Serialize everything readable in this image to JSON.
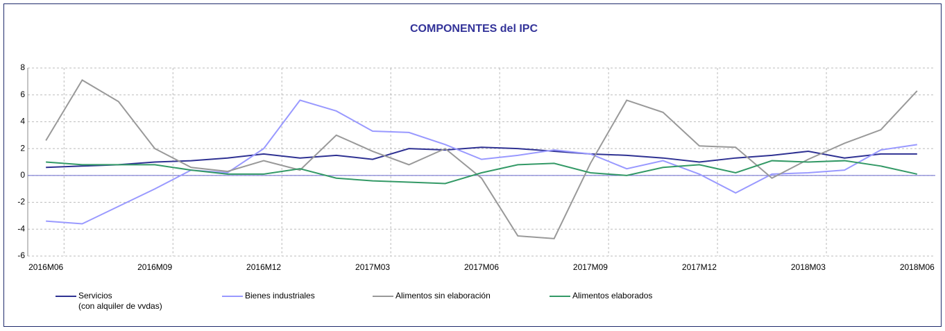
{
  "chart_data": {
    "type": "line",
    "title": "COMPONENTES del IPC",
    "categories": [
      "2016M06",
      null,
      null,
      "2016M09",
      null,
      null,
      "2016M12",
      null,
      null,
      "2017M03",
      null,
      null,
      "2017M06",
      null,
      null,
      "2017M09",
      null,
      null,
      "2017M12",
      null,
      null,
      "2018M03",
      null,
      null,
      "2018M06"
    ],
    "series": [
      {
        "name": "Servicios\n(con alquiler de vvdas)",
        "color": "#2e3192",
        "values": [
          0.6,
          0.7,
          0.8,
          1.0,
          1.1,
          1.3,
          1.6,
          1.3,
          1.5,
          1.2,
          2.0,
          1.9,
          2.1,
          2.0,
          1.8,
          1.6,
          1.5,
          1.3,
          1.0,
          1.3,
          1.5,
          1.8,
          1.3,
          1.6,
          1.6
        ]
      },
      {
        "name": "Bienes industriales",
        "color": "#9999ff",
        "values": [
          -3.4,
          -3.6,
          -2.3,
          -1.0,
          0.4,
          0.2,
          2.0,
          5.6,
          4.8,
          3.3,
          3.2,
          2.3,
          1.2,
          1.5,
          1.9,
          1.6,
          0.5,
          1.1,
          0.1,
          -1.3,
          0.1,
          0.2,
          0.4,
          1.9,
          2.3
        ]
      },
      {
        "name": "Alimentos sin elaboración",
        "color": "#999999",
        "values": [
          2.6,
          7.1,
          5.5,
          2.0,
          0.6,
          0.3,
          1.1,
          0.4,
          3.0,
          1.8,
          0.8,
          2.0,
          -0.2,
          -4.5,
          -4.7,
          0.9,
          5.6,
          4.7,
          2.2,
          2.1,
          -0.2,
          1.2,
          2.4,
          3.4,
          6.3
        ]
      },
      {
        "name": "Alimentos elaborados",
        "color": "#339966",
        "values": [
          1.0,
          0.8,
          0.8,
          0.8,
          0.4,
          0.1,
          0.1,
          0.5,
          -0.2,
          -0.4,
          -0.5,
          -0.6,
          0.2,
          0.8,
          0.9,
          0.2,
          0.0,
          0.6,
          0.8,
          0.2,
          1.1,
          1.0,
          1.1,
          0.7,
          0.1
        ]
      }
    ],
    "ylim": [
      -6,
      8
    ],
    "yticks": [
      -6,
      -4,
      -2,
      0,
      2,
      4,
      6,
      8
    ],
    "grid": true
  }
}
